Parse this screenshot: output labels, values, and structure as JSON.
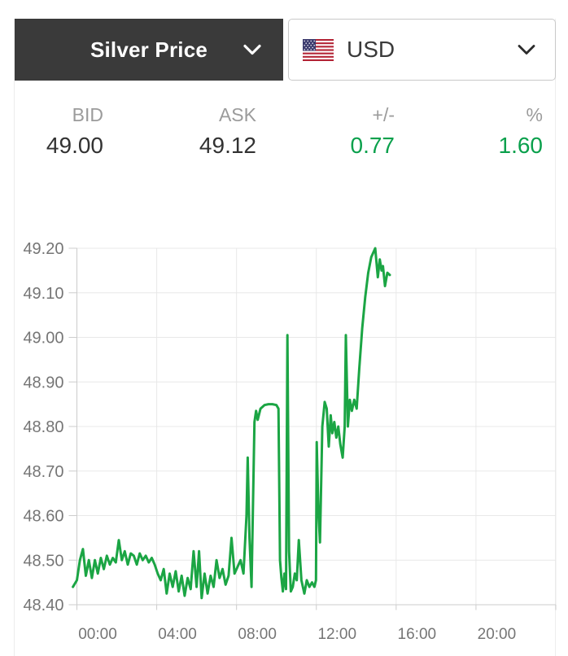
{
  "header": {
    "product_selector": {
      "label": "Silver Price"
    },
    "currency_selector": {
      "label": "USD",
      "flag": "us-flag"
    }
  },
  "stats": {
    "columns": [
      {
        "label": "BID",
        "value": "49.00",
        "color": "value_dark"
      },
      {
        "label": "ASK",
        "value": "49.12",
        "color": "value_dark"
      },
      {
        "label": "+/-",
        "value": "0.77",
        "color": "green"
      },
      {
        "label": "%",
        "value": "1.60",
        "color": "green"
      }
    ]
  },
  "colors": {
    "header_dark_bg": "#3a3a3a",
    "green": "#0aa04c",
    "line_green": "#1ba544",
    "label_gray": "#9b9b9b",
    "value_dark": "#323232",
    "axis_text": "#757575",
    "gridline": "#e8e8e8",
    "axis_line": "#cccccc"
  },
  "chart_data": {
    "type": "line",
    "title": "",
    "xlabel": "",
    "ylabel": "",
    "x_ticks": [
      {
        "hour": 0,
        "label": "00:00"
      },
      {
        "hour": 4,
        "label": "04:00"
      },
      {
        "hour": 8,
        "label": "08:00"
      },
      {
        "hour": 12,
        "label": "12:00"
      },
      {
        "hour": 16,
        "label": "16:00"
      },
      {
        "hour": 20,
        "label": "20:00"
      }
    ],
    "x_grid_hours": [
      0,
      4,
      8,
      12,
      16,
      20,
      24
    ],
    "x_range_hours": [
      0,
      24
    ],
    "y_ticks": [
      49.2,
      49.1,
      49.0,
      48.9,
      48.8,
      48.7,
      48.6,
      48.5,
      48.4
    ],
    "ylim": [
      48.4,
      49.2
    ],
    "grid": true,
    "legend": "none",
    "line_color": "#1ba544",
    "series": [
      {
        "name": "Silver Price (USD)",
        "points": [
          [
            -0.2,
            48.44
          ],
          [
            0.0,
            48.455
          ],
          [
            0.15,
            48.5
          ],
          [
            0.3,
            48.525
          ],
          [
            0.45,
            48.465
          ],
          [
            0.6,
            48.5
          ],
          [
            0.75,
            48.46
          ],
          [
            0.9,
            48.5
          ],
          [
            1.05,
            48.47
          ],
          [
            1.2,
            48.505
          ],
          [
            1.35,
            48.48
          ],
          [
            1.5,
            48.51
          ],
          [
            1.65,
            48.49
          ],
          [
            1.8,
            48.505
          ],
          [
            1.95,
            48.495
          ],
          [
            2.1,
            48.545
          ],
          [
            2.25,
            48.5
          ],
          [
            2.4,
            48.52
          ],
          [
            2.55,
            48.49
          ],
          [
            2.7,
            48.515
          ],
          [
            2.85,
            48.51
          ],
          [
            3.0,
            48.49
          ],
          [
            3.15,
            48.515
          ],
          [
            3.3,
            48.5
          ],
          [
            3.45,
            48.51
          ],
          [
            3.6,
            48.495
          ],
          [
            3.75,
            48.505
          ],
          [
            3.9,
            48.49
          ],
          [
            4.05,
            48.47
          ],
          [
            4.2,
            48.455
          ],
          [
            4.35,
            48.48
          ],
          [
            4.5,
            48.425
          ],
          [
            4.65,
            48.47
          ],
          [
            4.8,
            48.44
          ],
          [
            4.95,
            48.475
          ],
          [
            5.1,
            48.43
          ],
          [
            5.25,
            48.465
          ],
          [
            5.4,
            48.42
          ],
          [
            5.55,
            48.46
          ],
          [
            5.7,
            48.435
          ],
          [
            5.85,
            48.52
          ],
          [
            6.0,
            48.44
          ],
          [
            6.12,
            48.52
          ],
          [
            6.25,
            48.415
          ],
          [
            6.4,
            48.47
          ],
          [
            6.55,
            48.425
          ],
          [
            6.7,
            48.465
          ],
          [
            6.85,
            48.44
          ],
          [
            7.0,
            48.5
          ],
          [
            7.15,
            48.46
          ],
          [
            7.3,
            48.48
          ],
          [
            7.45,
            48.445
          ],
          [
            7.6,
            48.465
          ],
          [
            7.75,
            48.55
          ],
          [
            7.9,
            48.47
          ],
          [
            8.05,
            48.485
          ],
          [
            8.2,
            48.5
          ],
          [
            8.35,
            48.47
          ],
          [
            8.5,
            48.6
          ],
          [
            8.56,
            48.73
          ],
          [
            8.65,
            48.55
          ],
          [
            8.75,
            48.44
          ],
          [
            8.9,
            48.81
          ],
          [
            8.98,
            48.835
          ],
          [
            9.06,
            48.815
          ],
          [
            9.2,
            48.84
          ],
          [
            9.4,
            48.848
          ],
          [
            9.6,
            48.85
          ],
          [
            9.8,
            48.85
          ],
          [
            10.0,
            48.848
          ],
          [
            10.1,
            48.84
          ],
          [
            10.18,
            48.5
          ],
          [
            10.25,
            48.46
          ],
          [
            10.32,
            48.43
          ],
          [
            10.4,
            48.47
          ],
          [
            10.48,
            48.435
          ],
          [
            10.55,
            49.005
          ],
          [
            10.63,
            48.52
          ],
          [
            10.72,
            48.43
          ],
          [
            10.82,
            48.44
          ],
          [
            10.92,
            48.47
          ],
          [
            11.02,
            48.455
          ],
          [
            11.12,
            48.545
          ],
          [
            11.25,
            48.455
          ],
          [
            11.4,
            48.425
          ],
          [
            11.52,
            48.455
          ],
          [
            11.65,
            48.44
          ],
          [
            11.78,
            48.45
          ],
          [
            11.9,
            48.44
          ],
          [
            11.98,
            48.455
          ],
          [
            12.02,
            48.765
          ],
          [
            12.1,
            48.615
          ],
          [
            12.18,
            48.54
          ],
          [
            12.3,
            48.8
          ],
          [
            12.42,
            48.855
          ],
          [
            12.52,
            48.84
          ],
          [
            12.62,
            48.755
          ],
          [
            12.72,
            48.825
          ],
          [
            12.8,
            48.785
          ],
          [
            12.9,
            48.81
          ],
          [
            13.0,
            48.775
          ],
          [
            13.1,
            48.8
          ],
          [
            13.2,
            48.76
          ],
          [
            13.32,
            48.73
          ],
          [
            13.42,
            48.8
          ],
          [
            13.48,
            49.005
          ],
          [
            13.58,
            48.8
          ],
          [
            13.68,
            48.86
          ],
          [
            13.78,
            48.835
          ],
          [
            13.9,
            48.86
          ],
          [
            14.02,
            48.84
          ],
          [
            14.15,
            48.93
          ],
          [
            14.3,
            49.02
          ],
          [
            14.45,
            49.09
          ],
          [
            14.6,
            49.145
          ],
          [
            14.75,
            49.18
          ],
          [
            14.95,
            49.2
          ],
          [
            15.08,
            49.135
          ],
          [
            15.18,
            49.175
          ],
          [
            15.27,
            49.15
          ],
          [
            15.34,
            49.16
          ],
          [
            15.44,
            49.115
          ],
          [
            15.56,
            49.145
          ],
          [
            15.68,
            49.14
          ]
        ]
      }
    ]
  }
}
